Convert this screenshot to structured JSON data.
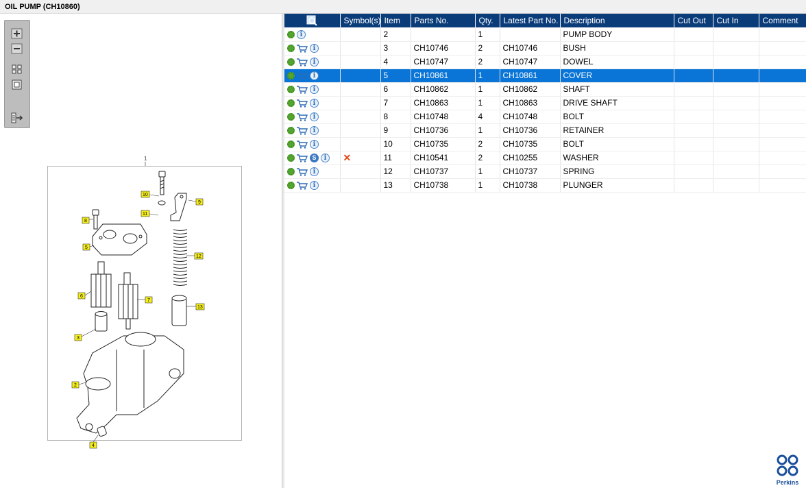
{
  "window": {
    "title": "OIL PUMP (CH10860)"
  },
  "toolbox": {
    "tools": [
      {
        "name": "zoom-in-icon"
      },
      {
        "name": "zoom-out-icon"
      },
      {
        "name": "fit-all-icon"
      },
      {
        "name": "fit-page-icon"
      },
      {
        "name": "export-icon"
      }
    ]
  },
  "drawing": {
    "top_label": "1",
    "callouts": [
      "10",
      "9",
      "8",
      "11",
      "5",
      "12",
      "6",
      "7",
      "13",
      "3",
      "2",
      "4"
    ]
  },
  "grid": {
    "headers": {
      "symbols": "Symbol(s)",
      "item": "Item",
      "parts_no": "Parts No.",
      "qty": "Qty.",
      "latest_part_no": "Latest Part No.",
      "description": "Description",
      "cut_out": "Cut Out",
      "cut_in": "Cut In",
      "comment": "Comment"
    },
    "rows": [
      {
        "item": "2",
        "parts_no": "",
        "qty": "1",
        "latest": "",
        "description": "PUMP BODY",
        "cart": false,
        "s": false,
        "x": false
      },
      {
        "item": "3",
        "parts_no": "CH10746",
        "qty": "2",
        "latest": "CH10746",
        "description": "BUSH",
        "cart": true,
        "s": false,
        "x": false
      },
      {
        "item": "4",
        "parts_no": "CH10747",
        "qty": "2",
        "latest": "CH10747",
        "description": "DOWEL",
        "cart": true,
        "s": false,
        "x": false
      },
      {
        "item": "5",
        "parts_no": "CH10861",
        "qty": "1",
        "latest": "CH10861",
        "description": "COVER",
        "cart": true,
        "s": false,
        "x": false
      },
      {
        "item": "6",
        "parts_no": "CH10862",
        "qty": "1",
        "latest": "CH10862",
        "description": "SHAFT",
        "cart": true,
        "s": false,
        "x": false
      },
      {
        "item": "7",
        "parts_no": "CH10863",
        "qty": "1",
        "latest": "CH10863",
        "description": "DRIVE SHAFT",
        "cart": true,
        "s": false,
        "x": false
      },
      {
        "item": "8",
        "parts_no": "CH10748",
        "qty": "4",
        "latest": "CH10748",
        "description": "BOLT",
        "cart": true,
        "s": false,
        "x": false
      },
      {
        "item": "9",
        "parts_no": "CH10736",
        "qty": "1",
        "latest": "CH10736",
        "description": "RETAINER",
        "cart": true,
        "s": false,
        "x": false
      },
      {
        "item": "10",
        "parts_no": "CH10735",
        "qty": "2",
        "latest": "CH10735",
        "description": "BOLT",
        "cart": true,
        "s": false,
        "x": false
      },
      {
        "item": "11",
        "parts_no": "CH10541",
        "qty": "2",
        "latest": "CH10255",
        "description": "WASHER",
        "cart": true,
        "s": true,
        "x": true
      },
      {
        "item": "12",
        "parts_no": "CH10737",
        "qty": "1",
        "latest": "CH10737",
        "description": "SPRING",
        "cart": true,
        "s": false,
        "x": false
      },
      {
        "item": "13",
        "parts_no": "CH10738",
        "qty": "1",
        "latest": "CH10738",
        "description": "PLUNGER",
        "cart": true,
        "s": false,
        "x": false
      }
    ],
    "selected_item": "5",
    "icons": {
      "s_label": "S",
      "info_label": "i",
      "x_label": "✕"
    }
  },
  "brand": {
    "name": "Perkins"
  },
  "colors": {
    "header_bg": "#0b3c7a",
    "selected_bg": "#0a75d6",
    "callout_fill": "#f5ee1a"
  }
}
